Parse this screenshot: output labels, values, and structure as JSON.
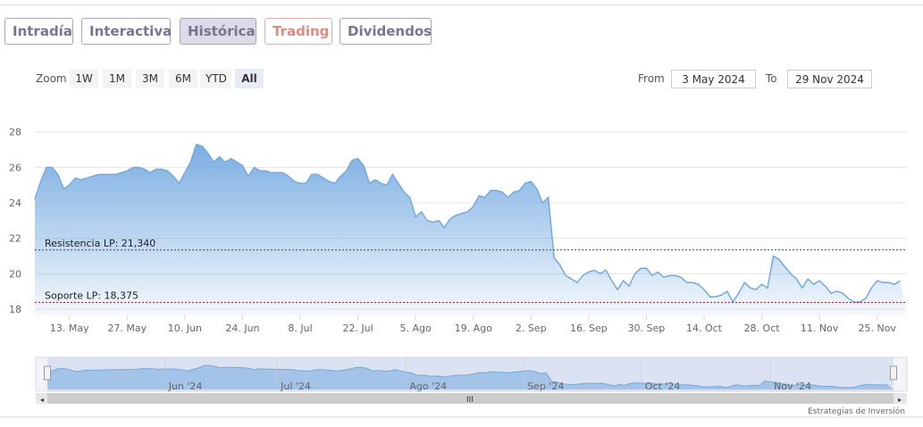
{
  "tabs": [
    "Intradía",
    "Interactiva",
    "Histórica",
    "Trading",
    "Dividendos"
  ],
  "active_tab": 2,
  "zoom": {
    "label": "Zoom",
    "buttons": [
      "1W",
      "1M",
      "3M",
      "6M",
      "YTD",
      "All"
    ],
    "active": 5
  },
  "range": {
    "from_label": "From",
    "from": "3 May 2024",
    "to_label": "To",
    "to": "29 Nov 2024"
  },
  "footer": "Estrategias de Inversión",
  "chart_data": {
    "type": "area",
    "color": "#74a9e0",
    "grid": true,
    "ylim": [
      17.65,
      29.8
    ],
    "yticks": [
      18,
      20,
      22,
      24,
      26,
      28
    ],
    "xlim": [
      0,
      151
    ],
    "xticks": [
      {
        "value": 6,
        "label": "13. May"
      },
      {
        "value": 16,
        "label": "27. May"
      },
      {
        "value": 26,
        "label": "10. Jun"
      },
      {
        "value": 36,
        "label": "24. Jun"
      },
      {
        "value": 46,
        "label": "8. Jul"
      },
      {
        "value": 56,
        "label": "22. Jul"
      },
      {
        "value": 66,
        "label": "5. Ago"
      },
      {
        "value": 76,
        "label": "19. Ago"
      },
      {
        "value": 86,
        "label": "2. Sep"
      },
      {
        "value": 96,
        "label": "16. Sep"
      },
      {
        "value": 106,
        "label": "30. Sep"
      },
      {
        "value": 116,
        "label": "14. Oct"
      },
      {
        "value": 126,
        "label": "28. Oct"
      },
      {
        "value": 136,
        "label": "11. Nov"
      },
      {
        "value": 146,
        "label": "25. Nov"
      }
    ],
    "values": [
      24.2,
      25.2,
      26.0,
      26.0,
      25.6,
      24.8,
      25.0,
      25.4,
      25.3,
      25.4,
      25.5,
      25.6,
      25.6,
      25.6,
      25.6,
      25.7,
      25.8,
      26.0,
      26.0,
      25.9,
      25.7,
      25.9,
      25.9,
      25.8,
      25.5,
      25.1,
      25.7,
      26.3,
      27.3,
      27.2,
      26.8,
      26.3,
      26.6,
      26.3,
      26.5,
      26.3,
      26.1,
      25.5,
      26.0,
      25.8,
      25.8,
      25.7,
      25.7,
      25.7,
      25.5,
      25.2,
      25.1,
      25.1,
      25.6,
      25.6,
      25.4,
      25.2,
      25.1,
      25.5,
      25.8,
      26.4,
      26.5,
      26.1,
      25.1,
      25.3,
      25.1,
      25.0,
      25.6,
      25.1,
      24.6,
      24.3,
      23.2,
      23.5,
      23.0,
      22.9,
      23.0,
      22.6,
      23.1,
      23.3,
      23.4,
      23.5,
      23.8,
      24.4,
      24.3,
      24.7,
      24.7,
      24.6,
      24.3,
      24.6,
      24.7,
      25.1,
      25.2,
      24.8,
      24.0,
      24.3,
      20.9,
      20.5,
      19.9,
      19.7,
      19.5,
      19.9,
      20.1,
      20.2,
      20.0,
      20.2,
      19.6,
      19.1,
      19.6,
      19.3,
      20.0,
      20.3,
      20.3,
      19.9,
      20.1,
      19.8,
      19.9,
      19.9,
      19.8,
      19.5,
      19.5,
      19.4,
      19.1,
      18.7,
      18.7,
      18.8,
      19.0,
      18.4,
      18.9,
      19.5,
      19.2,
      19.1,
      19.4,
      19.2,
      21.0,
      20.8,
      20.4,
      20.0,
      19.7,
      19.2,
      19.7,
      19.4,
      19.6,
      19.3,
      18.9,
      19.0,
      18.9,
      18.6,
      18.4,
      18.4,
      18.6,
      19.2,
      19.6,
      19.5,
      19.5,
      19.4,
      19.6
    ],
    "plot_lines": [
      {
        "value": 21.34,
        "label": "Resistencia LP: 21,340",
        "color": "#2f4f2f"
      },
      {
        "value": 18.375,
        "label": "Soporte LP: 18,375",
        "color": "#8b1a1a"
      }
    ],
    "navigator_ticks": [
      {
        "value": 21,
        "label": "Jun '24"
      },
      {
        "value": 41,
        "label": "Jul '24"
      },
      {
        "value": 64,
        "label": "Ago '24"
      },
      {
        "value": 85,
        "label": "Sep '24"
      },
      {
        "value": 106,
        "label": "Oct '24"
      },
      {
        "value": 129,
        "label": "Nov '24"
      }
    ]
  }
}
